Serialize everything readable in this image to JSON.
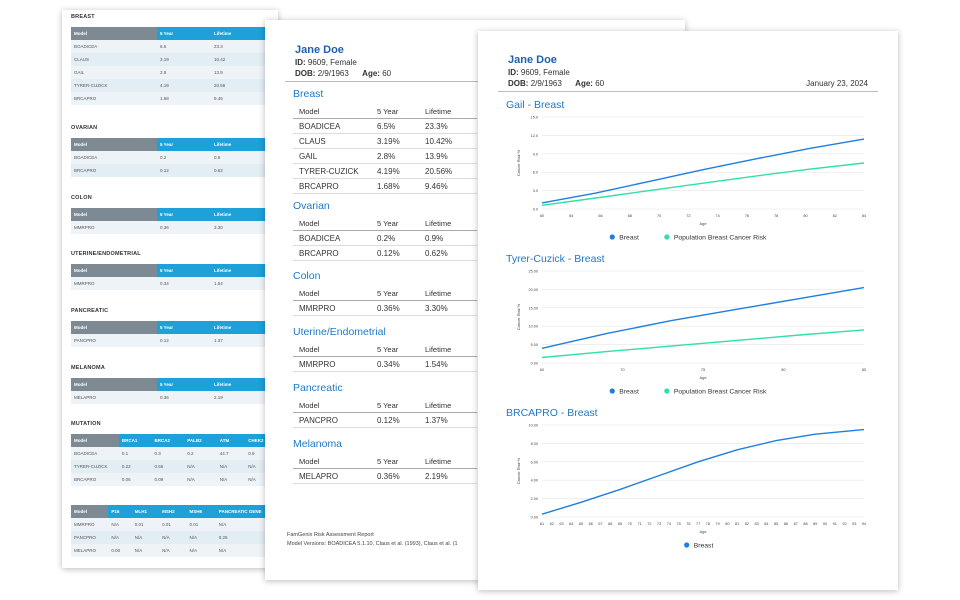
{
  "page1": {
    "sections": [
      {
        "title": "BREAST",
        "headers": [
          "Model",
          "5 Year",
          "Lifetime"
        ],
        "rows": [
          [
            "BOADICEA",
            "6.5",
            "23.3"
          ],
          [
            "CLAUS",
            "3.19",
            "10.42"
          ],
          [
            "GAIL",
            "2.8",
            "13.9"
          ],
          [
            "TYRER-CUZICK",
            "4.19",
            "20.56"
          ],
          [
            "BRCAPRO",
            "1.68",
            "9.46"
          ]
        ]
      },
      {
        "title": "OVARIAN",
        "headers": [
          "Model",
          "5 Year",
          "Lifetime"
        ],
        "rows": [
          [
            "BOADICEA",
            "0.2",
            "0.9"
          ],
          [
            "BRCAPRO",
            "0.12",
            "0.62"
          ]
        ]
      },
      {
        "title": "COLON",
        "headers": [
          "Model",
          "5 Year",
          "Lifetime"
        ],
        "rows": [
          [
            "MMRPRO",
            "0.36",
            "3.30"
          ]
        ]
      },
      {
        "title": "UTERINE/ENDOMETRIAL",
        "headers": [
          "Model",
          "5 Year",
          "Lifetime"
        ],
        "rows": [
          [
            "MMRPRO",
            "0.34",
            "1.54"
          ]
        ]
      },
      {
        "title": "PANCREATIC",
        "headers": [
          "Model",
          "5 Year",
          "Lifetime"
        ],
        "rows": [
          [
            "PANCPRO",
            "0.12",
            "1.37"
          ]
        ]
      },
      {
        "title": "MELANOMA",
        "headers": [
          "Model",
          "5 Year",
          "Lifetime"
        ],
        "rows": [
          [
            "MELAPRO",
            "0.36",
            "2.19"
          ]
        ]
      },
      {
        "title": "MUTATION",
        "headers": [
          "Model",
          "BRCA1",
          "BRCA2",
          "PALB2",
          "ATM",
          "CHEK2"
        ],
        "rows": [
          [
            "BOADICEA",
            "0.1",
            "0.3",
            "0.2",
            "44.7",
            "0.9"
          ],
          [
            "TYRER-CUZICK",
            "0.22",
            "0.56",
            "N/A",
            "N/A",
            "N/A"
          ],
          [
            "BRCAPRO",
            "0.06",
            "0.09",
            "N/A",
            "N/A",
            "N/A"
          ]
        ]
      },
      {
        "title": "",
        "headers": [
          "Model",
          "P16",
          "MLH1",
          "MSH2",
          "MSH6",
          "PANCREATIC GENE"
        ],
        "rows": [
          [
            "MMRPRO",
            "N/A",
            "0.01",
            "0.01",
            "0.01",
            "N/A"
          ],
          [
            "PANCPRO",
            "N/A",
            "N/A",
            "N/A",
            "N/A",
            "0.26"
          ],
          [
            "MELAPRO",
            "0.00",
            "N/A",
            "N/A",
            "N/A",
            "N/A"
          ]
        ]
      }
    ]
  },
  "patient": {
    "name": "Jane Doe",
    "id_label": "ID:",
    "id_value": "9609, Female",
    "dob_label": "DOB:",
    "dob_value": "2/9/1963",
    "age_label": "Age:",
    "age_value": "60"
  },
  "page2": {
    "sections": [
      {
        "title": "Breast",
        "headers": [
          "Model",
          "5 Year",
          "Lifetime"
        ],
        "rows": [
          [
            "BOADICEA",
            "6.5%",
            "23.3%"
          ],
          [
            "CLAUS",
            "3.19%",
            "10.42%"
          ],
          [
            "GAIL",
            "2.8%",
            "13.9%"
          ],
          [
            "TYRER-CUZICK",
            "4.19%",
            "20.56%"
          ],
          [
            "BRCAPRO",
            "1.68%",
            "9.46%"
          ]
        ]
      },
      {
        "title": "Ovarian",
        "headers": [
          "Model",
          "5 Year",
          "Lifetime"
        ],
        "rows": [
          [
            "BOADICEA",
            "0.2%",
            "0.9%"
          ],
          [
            "BRCAPRO",
            "0.12%",
            "0.62%"
          ]
        ]
      },
      {
        "title": "Colon",
        "headers": [
          "Model",
          "5 Year",
          "Lifetime"
        ],
        "rows": [
          [
            "MMRPRO",
            "0.36%",
            "3.30%"
          ]
        ]
      },
      {
        "title": "Uterine/Endometrial",
        "headers": [
          "Model",
          "5 Year",
          "Lifetime"
        ],
        "rows": [
          [
            "MMRPRO",
            "0.34%",
            "1.54%"
          ]
        ]
      },
      {
        "title": "Pancreatic",
        "headers": [
          "Model",
          "5 Year",
          "Lifetime"
        ],
        "rows": [
          [
            "PANCPRO",
            "0.12%",
            "1.37%"
          ]
        ]
      },
      {
        "title": "Melanoma",
        "headers": [
          "Model",
          "5 Year",
          "Lifetime"
        ],
        "rows": [
          [
            "MELAPRO",
            "0.36%",
            "2.19%"
          ]
        ]
      }
    ],
    "footer_line1": "FamGenix Risk Assessment Report",
    "footer_line2": "Model Versions: BOADICEA 5.1.10, Claus et al. (1993), Claus et al. (1"
  },
  "page3": {
    "date": "January 23, 2024"
  },
  "chart_data": [
    {
      "type": "line",
      "title": "Gail - Breast",
      "xlabel": "Age",
      "ylabel": "Cancer Risk %",
      "xlim": [
        60,
        84
      ],
      "ylim": [
        0,
        15
      ],
      "x_ticks": [
        "60",
        "64",
        "66",
        "68",
        "70",
        "72",
        "74",
        "76",
        "78",
        "80",
        "82",
        "84"
      ],
      "y_ticks": [
        "0.0",
        "3.0",
        "6.0",
        "9.0",
        "12.0",
        "15.0"
      ],
      "series": [
        {
          "name": "Breast",
          "color": "#1e7fe0",
          "x": [
            60,
            64,
            68,
            72,
            76,
            80,
            84
          ],
          "y": [
            1.0,
            2.6,
            4.5,
            6.4,
            8.2,
            9.9,
            11.4
          ]
        },
        {
          "name": "Population Breast Cancer Risk",
          "color": "#2fe0a8",
          "x": [
            60,
            64,
            68,
            72,
            76,
            80,
            84
          ],
          "y": [
            0.6,
            1.8,
            3.0,
            4.2,
            5.4,
            6.5,
            7.5
          ]
        }
      ]
    },
    {
      "type": "line",
      "title": "Tyrer-Cuzick - Breast",
      "xlabel": "Age",
      "ylabel": "Cancer Risk %",
      "xlim": [
        60,
        85
      ],
      "ylim": [
        0,
        25
      ],
      "x_ticks": [
        "60",
        "70",
        "75",
        "80",
        "85"
      ],
      "y_ticks": [
        "0.00",
        "5.00",
        "10.00",
        "15.00",
        "20.00",
        "25.00"
      ],
      "series": [
        {
          "name": "Breast",
          "color": "#1e7fe0",
          "x": [
            60,
            65,
            70,
            75,
            80,
            85
          ],
          "y": [
            4.0,
            8.0,
            11.5,
            14.5,
            17.5,
            20.5
          ]
        },
        {
          "name": "Population Breast Cancer Risk",
          "color": "#2fe0a8",
          "x": [
            60,
            65,
            70,
            75,
            80,
            85
          ],
          "y": [
            1.5,
            3.1,
            4.6,
            6.1,
            7.6,
            9.0
          ]
        }
      ]
    },
    {
      "type": "line",
      "title": "BRCAPRO - Breast",
      "xlabel": "Age",
      "ylabel": "Cancer Risk %",
      "xlim": [
        61,
        94
      ],
      "ylim": [
        0,
        10
      ],
      "x_ticks": [
        "61",
        "62",
        "63",
        "64",
        "65",
        "66",
        "67",
        "68",
        "69",
        "70",
        "71",
        "72",
        "73",
        "74",
        "75",
        "76",
        "77",
        "78",
        "79",
        "80",
        "81",
        "82",
        "83",
        "84",
        "85",
        "86",
        "87",
        "88",
        "89",
        "90",
        "91",
        "92",
        "93",
        "94"
      ],
      "y_ticks": [
        "0.00",
        "2.00",
        "4.00",
        "6.00",
        "8.00",
        "10.00"
      ],
      "series": [
        {
          "name": "Breast",
          "color": "#1e7fe0",
          "x": [
            61,
            65,
            69,
            73,
            77,
            81,
            85,
            89,
            94
          ],
          "y": [
            0.3,
            1.6,
            3.0,
            4.5,
            6.0,
            7.3,
            8.3,
            9.0,
            9.5
          ]
        }
      ]
    }
  ]
}
